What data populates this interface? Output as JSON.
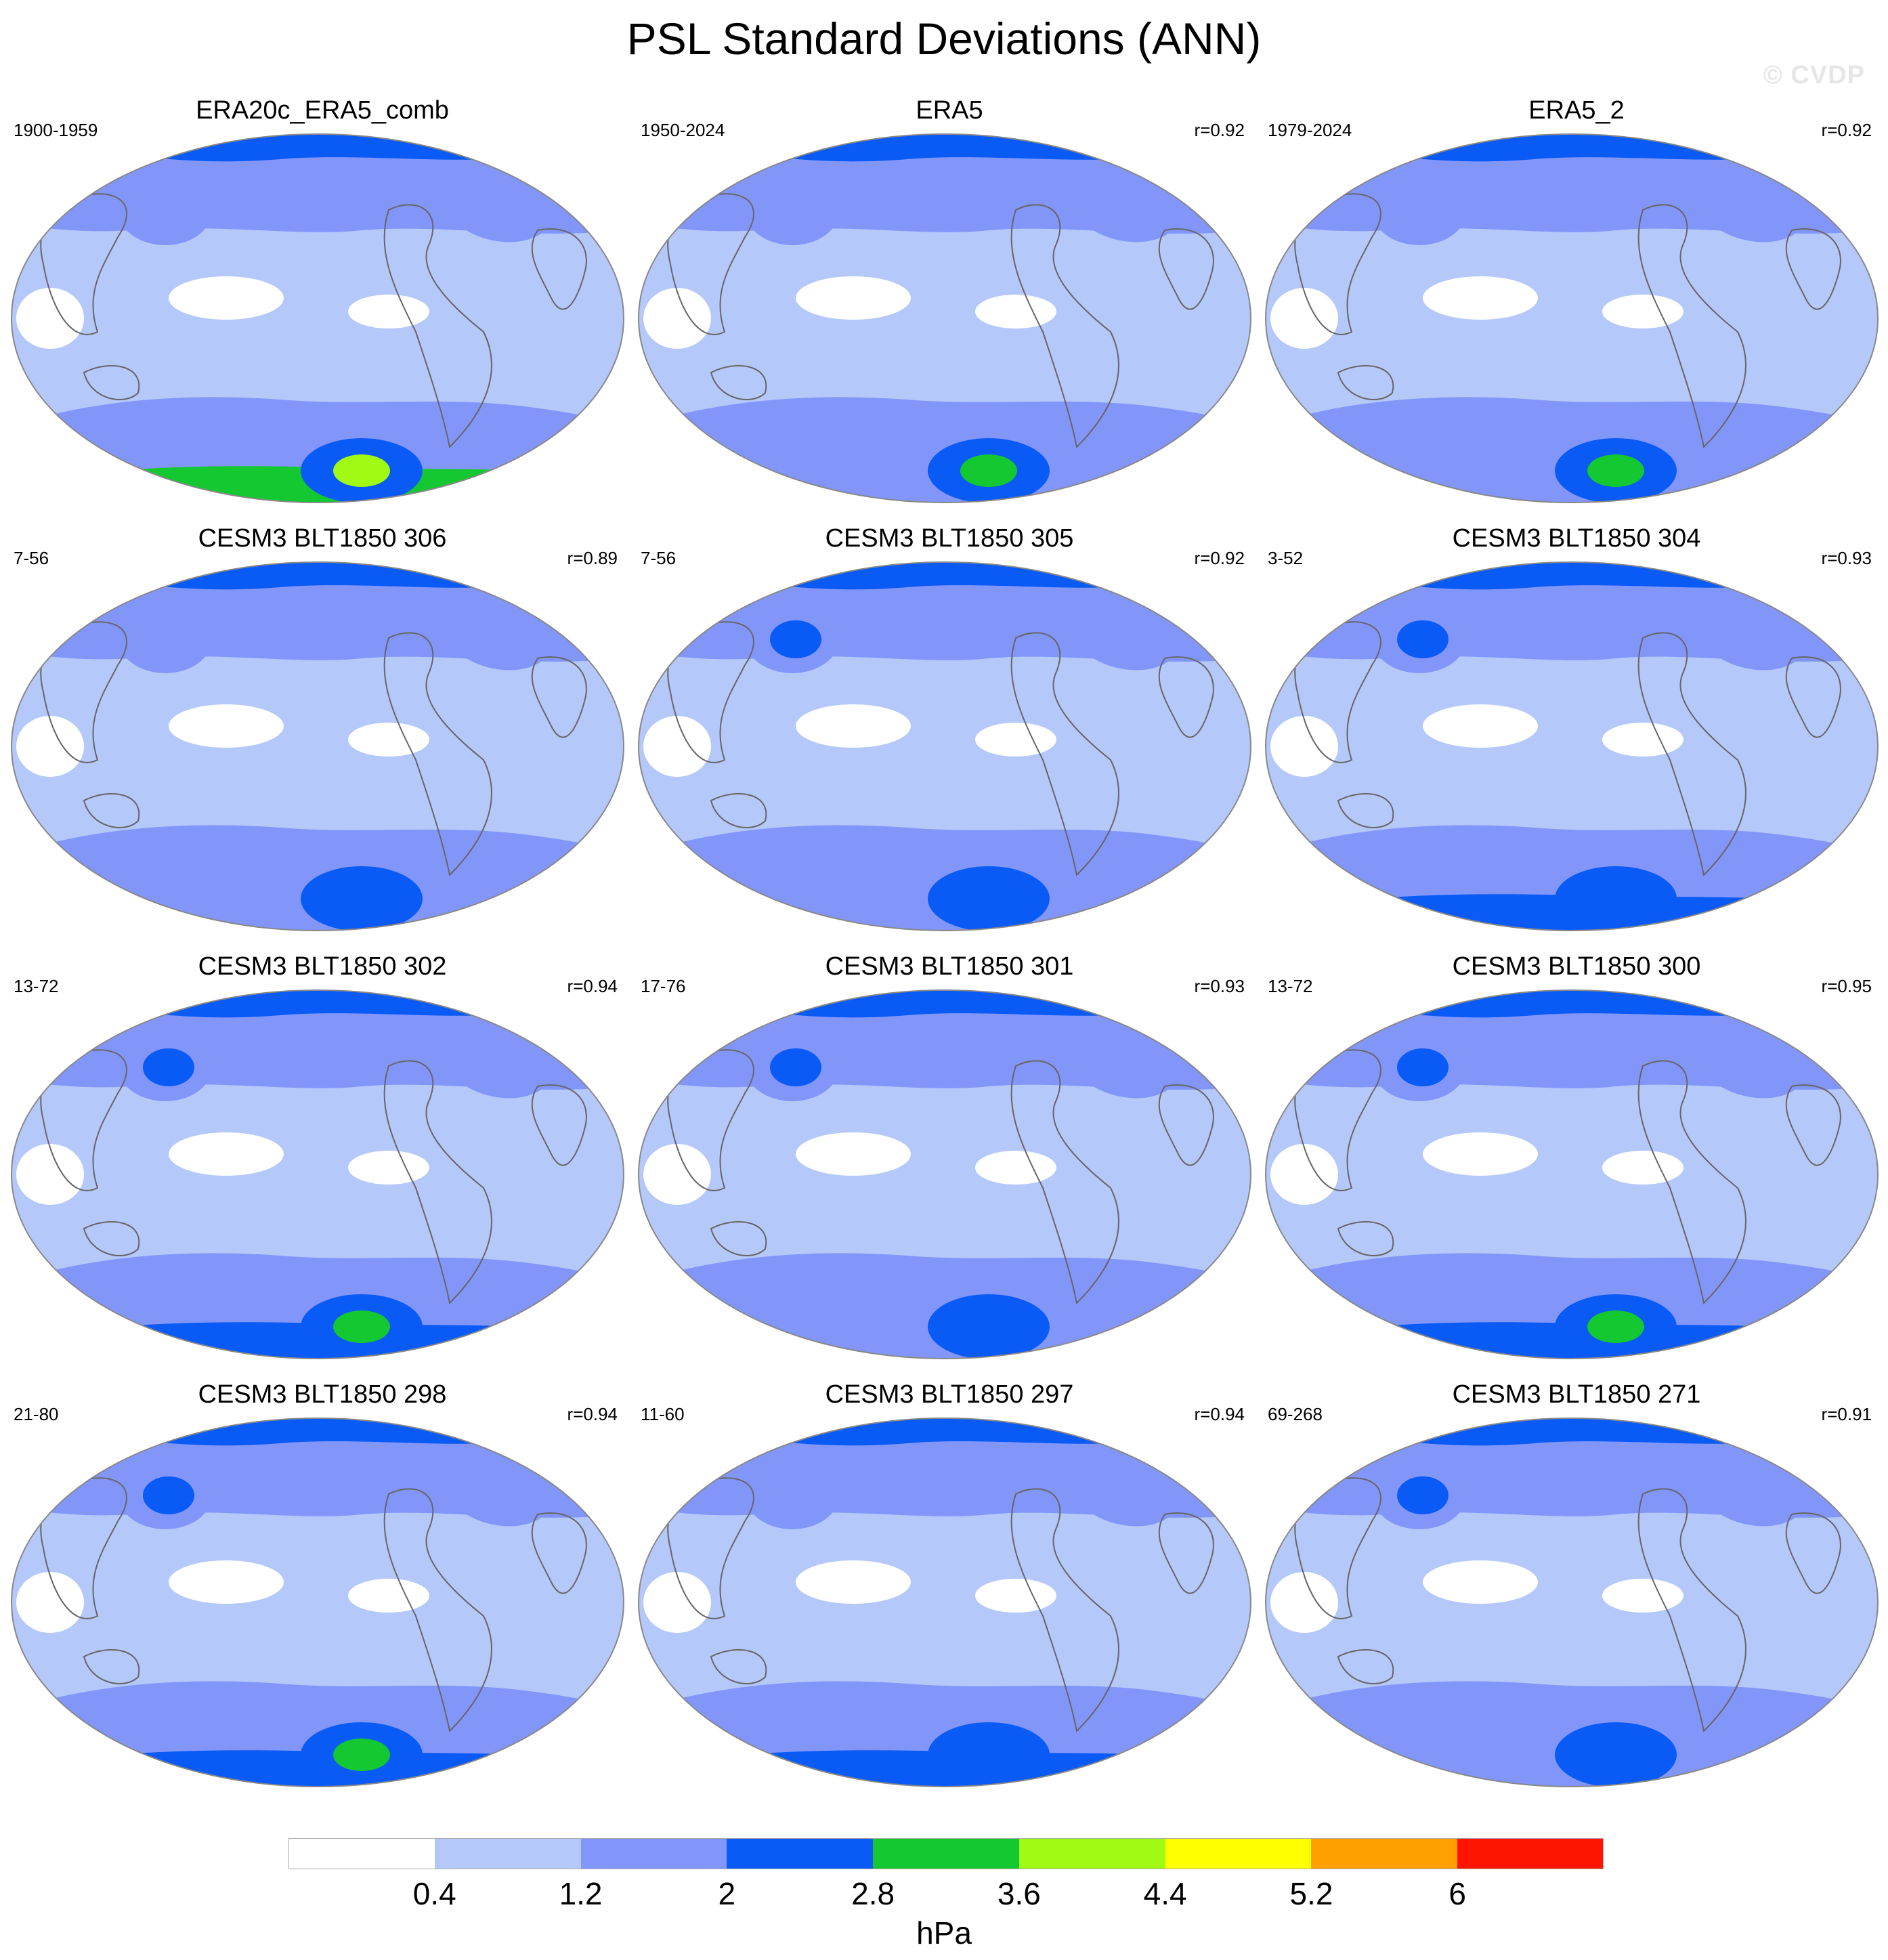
{
  "title": "PSL Standard Deviations (ANN)",
  "watermark": "© CVDP",
  "chart_data": {
    "type": "heatmap",
    "variable": "PSL",
    "statistic": "Standard Deviations",
    "season": "ANN",
    "projection": "Robinson (Pacific-centered)",
    "units": "hPa",
    "colorbar": {
      "levels": [
        0.4,
        1.2,
        2,
        2.8,
        3.6,
        4.4,
        5.2,
        6
      ],
      "tick_labels": [
        "0.4",
        "1.2",
        "2",
        "2.8",
        "3.6",
        "4.4",
        "5.2",
        "6"
      ],
      "colors": [
        "#ffffff",
        "#b4c8fa",
        "#8296fa",
        "#0a5af5",
        "#14c832",
        "#a0fa14",
        "#ffff00",
        "#ffa000",
        "#ff1400"
      ]
    },
    "panels": [
      {
        "title": "ERA20c_ERA5_comb",
        "years": "1900-1959",
        "r": "",
        "features": {
          "north_pacific_max": 2,
          "south_polar_max": 5,
          "south_polar_band": 4
        }
      },
      {
        "title": "ERA5",
        "years": "1950-2024",
        "r": "r=0.92",
        "features": {
          "north_pacific_max": 2,
          "south_polar_max": 4,
          "south_polar_band": 2
        }
      },
      {
        "title": "ERA5_2",
        "years": "1979-2024",
        "r": "r=0.92",
        "features": {
          "north_pacific_max": 2,
          "south_polar_max": 4,
          "south_polar_band": 2
        }
      },
      {
        "title": "CESM3 BLT1850 306",
        "years": "7-56",
        "r": "r=0.89",
        "features": {
          "north_pacific_max": 2,
          "south_polar_max": 3,
          "south_polar_band": 2
        }
      },
      {
        "title": "CESM3 BLT1850 305",
        "years": "7-56",
        "r": "r=0.92",
        "features": {
          "north_pacific_max": 3,
          "south_polar_max": 3,
          "south_polar_band": 2
        }
      },
      {
        "title": "CESM3 BLT1850 304",
        "years": "3-52",
        "r": "r=0.93",
        "features": {
          "north_pacific_max": 3,
          "south_polar_max": 3,
          "south_polar_band": 3
        }
      },
      {
        "title": "CESM3 BLT1850 302",
        "years": "13-72",
        "r": "r=0.94",
        "features": {
          "north_pacific_max": 3,
          "south_polar_max": 4,
          "south_polar_band": 3
        }
      },
      {
        "title": "CESM3 BLT1850 301",
        "years": "17-76",
        "r": "r=0.93",
        "features": {
          "north_pacific_max": 3,
          "south_polar_max": 3,
          "south_polar_band": 2
        }
      },
      {
        "title": "CESM3 BLT1850 300",
        "years": "13-72",
        "r": "r=0.95",
        "features": {
          "north_pacific_max": 3,
          "south_polar_max": 4,
          "south_polar_band": 3
        }
      },
      {
        "title": "CESM3 BLT1850 298",
        "years": "21-80",
        "r": "r=0.94",
        "features": {
          "north_pacific_max": 3,
          "south_polar_max": 4,
          "south_polar_band": 3
        }
      },
      {
        "title": "CESM3 BLT1850 297",
        "years": "11-60",
        "r": "r=0.94",
        "features": {
          "north_pacific_max": 2,
          "south_polar_max": 3,
          "south_polar_band": 3
        }
      },
      {
        "title": "CESM3 BLT1850 271",
        "years": "69-268",
        "r": "r=0.91",
        "features": {
          "north_pacific_max": 3,
          "south_polar_max": 3,
          "south_polar_band": 2
        }
      }
    ]
  }
}
